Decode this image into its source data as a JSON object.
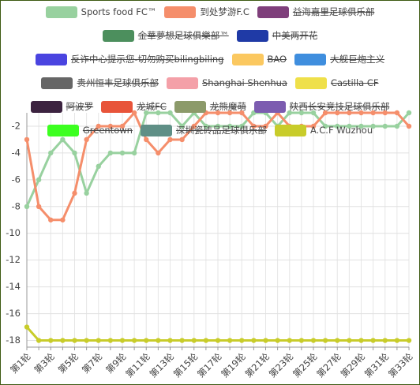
{
  "chart_data": {
    "type": "line",
    "categories": [
      "第1轮",
      null,
      "第3轮",
      null,
      "第5轮",
      null,
      "第7轮",
      null,
      "第9轮",
      null,
      "第11轮",
      null,
      "第13轮",
      null,
      "第15轮",
      null,
      "第17轮",
      null,
      "第19轮",
      null,
      "第21轮",
      null,
      "第23轮",
      null,
      "第25轮",
      null,
      "第27轮",
      null,
      "第29轮",
      null,
      "第31轮",
      null,
      "第33轮"
    ],
    "ylim": [
      -18.5,
      -1
    ],
    "yticks": [
      -2,
      -4,
      -6,
      -8,
      -10,
      -12,
      -14,
      -16,
      -18
    ],
    "grid": true,
    "series": [
      {
        "name": "Sports food FC™",
        "color": "#98d19f",
        "values": [
          -8,
          -6,
          -4,
          -3,
          -4,
          -7,
          -5,
          -4,
          -4,
          -4,
          -1,
          -1,
          -1,
          -2,
          -1,
          -2,
          -2,
          -2,
          -2,
          -1,
          -1,
          -2,
          -1,
          -1,
          -1,
          -2,
          -2,
          -2,
          -2,
          -2,
          -2,
          -2,
          -1
        ]
      },
      {
        "name": "到处梦游F.C",
        "color": "#f58e6b",
        "values": [
          -3,
          -8,
          -9,
          -9,
          -7,
          -3,
          -2,
          -2,
          -2,
          -1,
          -3,
          -4,
          -3,
          -3,
          -2,
          -1,
          -1,
          -1,
          -1,
          -2,
          -2,
          -1,
          -2,
          -2,
          -2,
          -1,
          -1,
          -1,
          -1,
          -1,
          -1,
          -1,
          -2
        ]
      },
      {
        "name": "益海嘉里足球俱乐部",
        "color": "#7f3f7b",
        "hidden": true
      },
      {
        "name": "金華夢想足球俱樂部™",
        "color": "#4c8f5d",
        "hidden": true
      },
      {
        "name": "中美两开花",
        "color": "#1f3aa6",
        "hidden": true
      },
      {
        "name": "反诈中心提示您-切勿购买bilingbiling",
        "color": "#4a44e0",
        "hidden": true
      },
      {
        "name": "BAO",
        "color": "#fbc860",
        "hidden": true
      },
      {
        "name": "大舰巨炮主义",
        "color": "#3f8ede",
        "hidden": true
      },
      {
        "name": "贵州恒丰足球俱乐部",
        "color": "#666666",
        "hidden": true
      },
      {
        "name": "Shanghai Shenhua",
        "color": "#f4a0a8",
        "hidden": true
      },
      {
        "name": "Castilla CF",
        "color": "#efe04a",
        "hidden": true
      },
      {
        "name": "阿波罗",
        "color": "#3c2340",
        "hidden": true
      },
      {
        "name": "龙城FC",
        "color": "#e8543a",
        "hidden": true
      },
      {
        "name": "龙熊魔萌",
        "color": "#8c9a6a",
        "hidden": true
      },
      {
        "name": "陕西长安竞技足球俱乐部",
        "color": "#7c5cb0",
        "hidden": true
      },
      {
        "name": "Greentown",
        "color": "#3cff20",
        "hidden": true
      },
      {
        "name": "深圳瓷砖品足球俱乐部",
        "color": "#5f8f86",
        "hidden": true
      },
      {
        "name": "A.C.F Wuzhou",
        "color": "#c8cc2a",
        "values": [
          -17,
          -18,
          -18,
          -18,
          -18,
          -18,
          -18,
          -18,
          -18,
          -18,
          -18,
          -18,
          -18,
          -18,
          -18,
          -18,
          -18,
          -18,
          -18,
          -18,
          -18,
          -18,
          -18,
          -18,
          -18,
          -18,
          -18,
          -18,
          -18,
          -18,
          -18,
          -18,
          -18
        ]
      }
    ]
  }
}
